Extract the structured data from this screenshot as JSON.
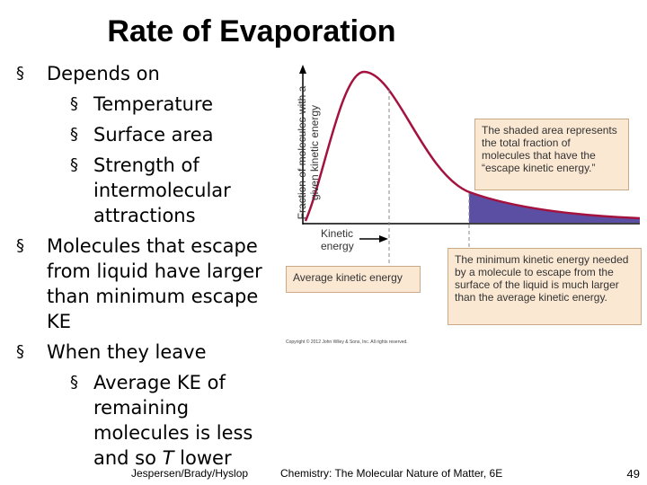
{
  "header": {
    "title": "Rate of Evaporation"
  },
  "bullets": [
    {
      "text": "Depends on",
      "sub": [
        {
          "text": "Temperature"
        },
        {
          "text": "Surface area"
        },
        {
          "text": "Strength of intermolecular attractions"
        }
      ]
    },
    {
      "text": "Molecules that escape from liquid have larger than minimum escape KE",
      "sub": []
    },
    {
      "text": "When they leave",
      "sub": [
        {
          "parts": [
            "Average KE of remaining molecules is less and so ",
            "T",
            " lower"
          ]
        }
      ]
    }
  ],
  "figure": {
    "y_axis_label": "Fraction of molecules with a given kinetic energy",
    "x_axis_label": "Kinetic energy",
    "average_label": "Average kinetic energy",
    "callouts": [
      "The shaded area represents the total fraction of molecules that have the “escape kinetic energy.”",
      "The minimum kinetic energy needed by a molecule to escape from the surface of the liquid is much larger than the average kinetic energy."
    ],
    "copyright": "Copyright © 2012 John Wiley & Sons, Inc. All rights reserved."
  },
  "footer": {
    "authors": "Jespersen/Brady/Hyslop",
    "book": "Chemistry: The Molecular Nature of Matter, 6E",
    "page": "49"
  }
}
